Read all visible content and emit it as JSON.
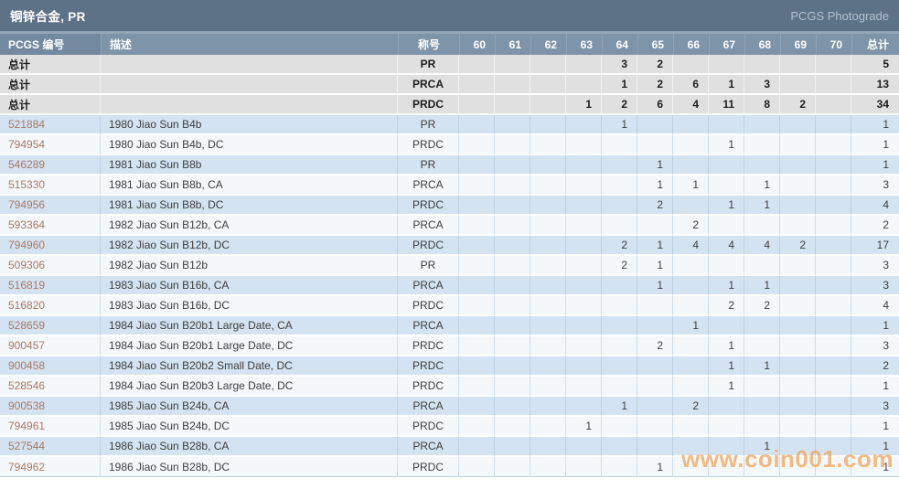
{
  "title_bar": {
    "title": "铜锌合金, PR",
    "right_label": "PCGS Photograde"
  },
  "table": {
    "headers": {
      "pcgs_no": "PCGS 编号",
      "description": "描述",
      "designation": "称号",
      "grades": [
        "60",
        "61",
        "62",
        "63",
        "64",
        "65",
        "66",
        "67",
        "68",
        "69",
        "70"
      ],
      "total": "总计"
    },
    "summary_label": "总计",
    "summary_rows": [
      {
        "designation": "PR",
        "grades": [
          "",
          "",
          "",
          "",
          "3",
          "2",
          "",
          "",
          "",
          "",
          ""
        ],
        "total": "5"
      },
      {
        "designation": "PRCA",
        "grades": [
          "",
          "",
          "",
          "",
          "1",
          "2",
          "6",
          "1",
          "3",
          "",
          ""
        ],
        "total": "13"
      },
      {
        "designation": "PRDC",
        "grades": [
          "",
          "",
          "",
          "1",
          "2",
          "6",
          "4",
          "11",
          "8",
          "2",
          ""
        ],
        "total": "34"
      }
    ],
    "rows": [
      {
        "pcgs_no": "521884",
        "description": "1980 Jiao Sun B4b",
        "designation": "PR",
        "grades": [
          "",
          "",
          "",
          "",
          "1",
          "",
          "",
          "",
          "",
          "",
          ""
        ],
        "total": "1"
      },
      {
        "pcgs_no": "794954",
        "description": "1980 Jiao Sun B4b, DC",
        "designation": "PRDC",
        "grades": [
          "",
          "",
          "",
          "",
          "",
          "",
          "",
          "1",
          "",
          "",
          ""
        ],
        "total": "1"
      },
      {
        "pcgs_no": "546289",
        "description": "1981 Jiao Sun B8b",
        "designation": "PR",
        "grades": [
          "",
          "",
          "",
          "",
          "",
          "1",
          "",
          "",
          "",
          "",
          ""
        ],
        "total": "1"
      },
      {
        "pcgs_no": "515330",
        "description": "1981 Jiao Sun B8b, CA",
        "designation": "PRCA",
        "grades": [
          "",
          "",
          "",
          "",
          "",
          "1",
          "1",
          "",
          "1",
          "",
          ""
        ],
        "total": "3"
      },
      {
        "pcgs_no": "794956",
        "description": "1981 Jiao Sun B8b, DC",
        "designation": "PRDC",
        "grades": [
          "",
          "",
          "",
          "",
          "",
          "2",
          "",
          "1",
          "1",
          "",
          ""
        ],
        "total": "4"
      },
      {
        "pcgs_no": "593364",
        "description": "1982 Jiao Sun B12b, CA",
        "designation": "PRCA",
        "grades": [
          "",
          "",
          "",
          "",
          "",
          "",
          "2",
          "",
          "",
          "",
          ""
        ],
        "total": "2"
      },
      {
        "pcgs_no": "794960",
        "description": "1982 Jiao Sun B12b, DC",
        "designation": "PRDC",
        "grades": [
          "",
          "",
          "",
          "",
          "2",
          "1",
          "4",
          "4",
          "4",
          "2",
          ""
        ],
        "total": "17"
      },
      {
        "pcgs_no": "509306",
        "description": "1982 Jiao Sun B12b",
        "designation": "PR",
        "grades": [
          "",
          "",
          "",
          "",
          "2",
          "1",
          "",
          "",
          "",
          "",
          ""
        ],
        "total": "3"
      },
      {
        "pcgs_no": "516819",
        "description": "1983 Jiao Sun B16b, CA",
        "designation": "PRCA",
        "grades": [
          "",
          "",
          "",
          "",
          "",
          "1",
          "",
          "1",
          "1",
          "",
          ""
        ],
        "total": "3"
      },
      {
        "pcgs_no": "516820",
        "description": "1983 Jiao Sun B16b, DC",
        "designation": "PRDC",
        "grades": [
          "",
          "",
          "",
          "",
          "",
          "",
          "",
          "2",
          "2",
          "",
          ""
        ],
        "total": "4"
      },
      {
        "pcgs_no": "528659",
        "description": "1984 Jiao Sun B20b1 Large Date, CA",
        "designation": "PRCA",
        "grades": [
          "",
          "",
          "",
          "",
          "",
          "",
          "1",
          "",
          "",
          "",
          ""
        ],
        "total": "1"
      },
      {
        "pcgs_no": "900457",
        "description": "1984 Jiao Sun B20b1 Large Date, DC",
        "designation": "PRDC",
        "grades": [
          "",
          "",
          "",
          "",
          "",
          "2",
          "",
          "1",
          "",
          "",
          ""
        ],
        "total": "3"
      },
      {
        "pcgs_no": "900458",
        "description": "1984 Jiao Sun B20b2 Small Date, DC",
        "designation": "PRDC",
        "grades": [
          "",
          "",
          "",
          "",
          "",
          "",
          "",
          "1",
          "1",
          "",
          ""
        ],
        "total": "2"
      },
      {
        "pcgs_no": "528546",
        "description": "1984 Jiao Sun B20b3 Large Date, DC",
        "designation": "PRDC",
        "grades": [
          "",
          "",
          "",
          "",
          "",
          "",
          "",
          "1",
          "",
          "",
          ""
        ],
        "total": "1"
      },
      {
        "pcgs_no": "900538",
        "description": "1985 Jiao Sun B24b, CA",
        "designation": "PRCA",
        "grades": [
          "",
          "",
          "",
          "",
          "1",
          "",
          "2",
          "",
          "",
          "",
          ""
        ],
        "total": "3"
      },
      {
        "pcgs_no": "794961",
        "description": "1985 Jiao Sun B24b, DC",
        "designation": "PRDC",
        "grades": [
          "",
          "",
          "",
          "1",
          "",
          "",
          "",
          "",
          "",
          "",
          ""
        ],
        "total": "1"
      },
      {
        "pcgs_no": "527544",
        "description": "1986 Jiao Sun B28b, CA",
        "designation": "PRCA",
        "grades": [
          "",
          "",
          "",
          "",
          "",
          "",
          "",
          "",
          "1",
          "",
          ""
        ],
        "total": "1"
      },
      {
        "pcgs_no": "794962",
        "description": "1986 Jiao Sun B28b, DC",
        "designation": "PRDC",
        "grades": [
          "",
          "",
          "",
          "",
          "",
          "1",
          "",
          "",
          "",
          "",
          ""
        ],
        "total": "1"
      }
    ]
  },
  "watermark": "www.coin001.com",
  "colors": {
    "title_bar_bg": "#5d7187",
    "header_bg": "#7e94a9",
    "row_blue": "#d3e3f2",
    "row_white": "#f4f8fb",
    "summary_bg": "#e0e0e0",
    "pcgs_link": "#a97763",
    "watermark": "#f0a154"
  }
}
